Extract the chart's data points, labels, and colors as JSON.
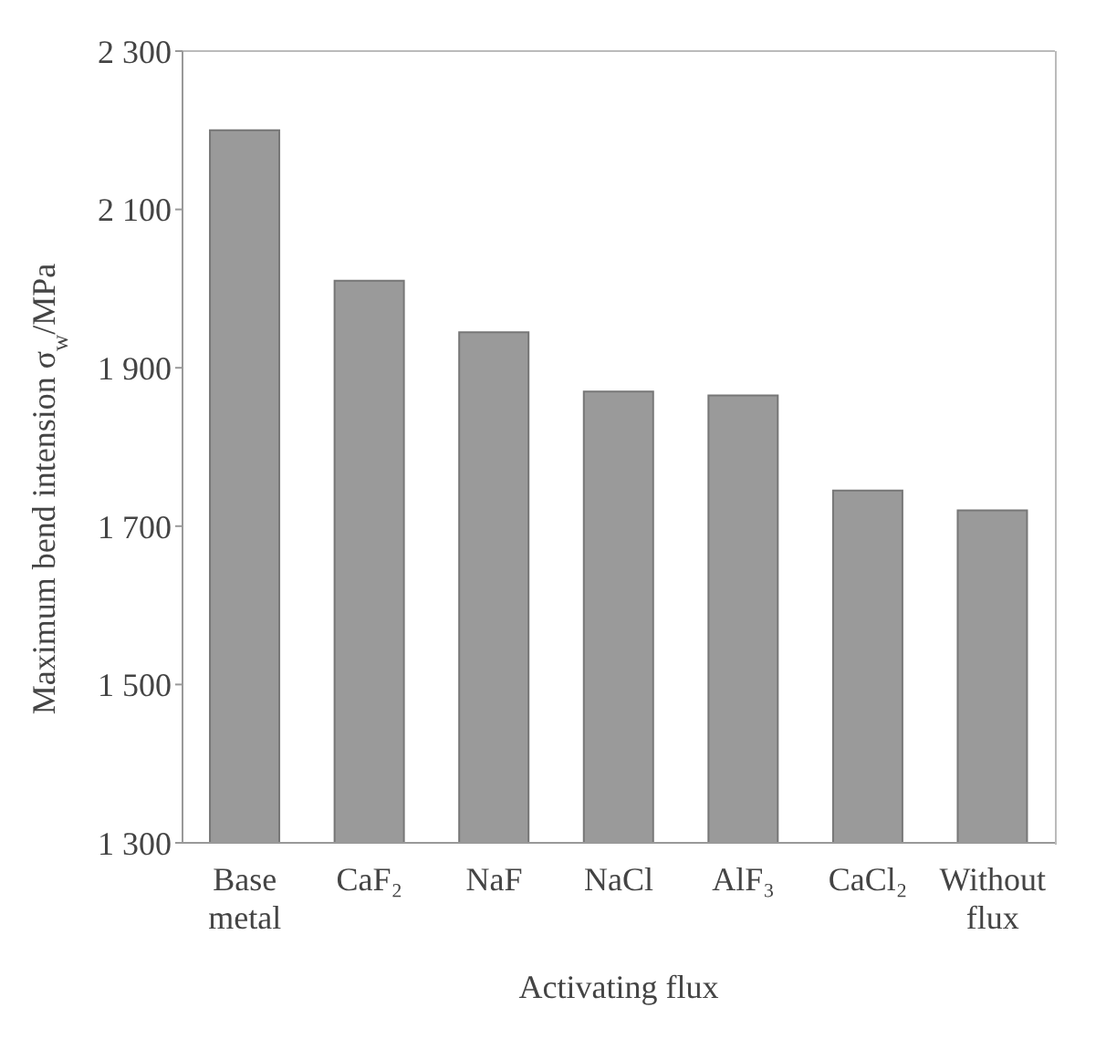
{
  "chart_data": {
    "type": "bar",
    "xlabel": "Activating flux",
    "ylabel": "Maximum bend intension σ$_{w}$/MPa",
    "categories": [
      "Base metal",
      "CaF₂",
      "NaF",
      "NaCl",
      "AlF₃",
      "CaCl₂",
      "Without flux"
    ],
    "values": [
      2200,
      2010,
      1945,
      1870,
      1865,
      1745,
      1720
    ],
    "color": "#9a9a9a",
    "ylim": [
      1300,
      2300
    ],
    "yticks": [
      {
        "value": 1300,
        "label": "1 300"
      },
      {
        "value": 1500,
        "label": "1 500"
      },
      {
        "value": 1700,
        "label": "1 700"
      },
      {
        "value": 1900,
        "label": "1 900"
      },
      {
        "value": 2100,
        "label": "2 100"
      },
      {
        "value": 2300,
        "label": "2 300"
      }
    ],
    "grid": false
  }
}
